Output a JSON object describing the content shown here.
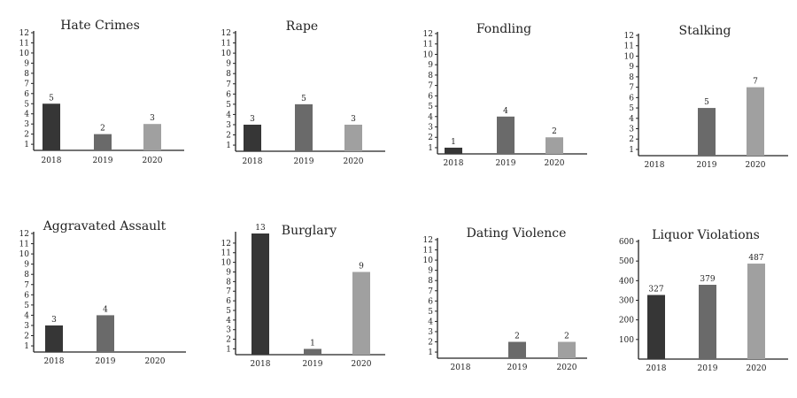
{
  "colors": {
    "2018": "#363636",
    "2019": "#6a6a6a",
    "2020": "#a0a0a0",
    "axis": "#222222"
  },
  "chart_data": [
    {
      "type": "bar",
      "title": "Hate Crimes",
      "categories": [
        "2018",
        "2019",
        "2020"
      ],
      "values": [
        5,
        2,
        3
      ],
      "labels": [
        "5",
        "2",
        "3"
      ],
      "yticks": [
        1,
        2,
        3,
        4,
        5,
        6,
        7,
        8,
        9,
        10,
        11,
        12
      ],
      "ylim": [
        0.4,
        12
      ]
    },
    {
      "type": "bar",
      "title": "Rape",
      "categories": [
        "2018",
        "2019",
        "2020"
      ],
      "values": [
        3,
        5,
        3
      ],
      "labels": [
        "3",
        "5",
        "3"
      ],
      "yticks": [
        1,
        2,
        3,
        4,
        5,
        6,
        7,
        8,
        9,
        10,
        11,
        12
      ],
      "ylim": [
        0.4,
        12
      ]
    },
    {
      "type": "bar",
      "title": "Fondling",
      "categories": [
        "2018",
        "2019",
        "2020"
      ],
      "values": [
        1,
        4,
        2
      ],
      "labels": [
        "1",
        "4",
        "2"
      ],
      "yticks": [
        1,
        2,
        3,
        4,
        5,
        6,
        7,
        8,
        9,
        10,
        11,
        12
      ],
      "ylim": [
        0.4,
        12
      ]
    },
    {
      "type": "bar",
      "title": "Stalking",
      "categories": [
        "2018",
        "2019",
        "2020"
      ],
      "values": [
        0,
        5,
        7
      ],
      "labels": [
        "",
        "5",
        "7"
      ],
      "yticks": [
        1,
        2,
        3,
        4,
        5,
        6,
        7,
        8,
        9,
        10,
        11,
        12
      ],
      "ylim": [
        0.4,
        12
      ]
    },
    {
      "type": "bar",
      "title": "Aggravated Assault",
      "categories": [
        "2018",
        "2019",
        "2020"
      ],
      "values": [
        3,
        4,
        0
      ],
      "labels": [
        "3",
        "4",
        ""
      ],
      "yticks": [
        1,
        2,
        3,
        4,
        5,
        6,
        7,
        8,
        9,
        10,
        11,
        12
      ],
      "ylim": [
        0.4,
        12
      ]
    },
    {
      "type": "bar",
      "title": "Burglary",
      "categories": [
        "2018",
        "2019",
        "2020"
      ],
      "values": [
        13,
        1,
        9
      ],
      "labels": [
        "13",
        "1",
        "9"
      ],
      "yticks": [
        1,
        2,
        3,
        4,
        5,
        6,
        7,
        8,
        9,
        10,
        11,
        12
      ],
      "ylim": [
        0.4,
        13
      ]
    },
    {
      "type": "bar",
      "title": "Dating Violence",
      "categories": [
        "2018",
        "2019",
        "2020"
      ],
      "values": [
        0,
        2,
        2
      ],
      "labels": [
        "",
        "2",
        "2"
      ],
      "yticks": [
        1,
        2,
        3,
        4,
        5,
        6,
        7,
        8,
        9,
        10,
        11,
        12
      ],
      "ylim": [
        0.4,
        12
      ]
    },
    {
      "type": "bar",
      "title": "Liquor Violations",
      "categories": [
        "2018",
        "2019",
        "2020"
      ],
      "values": [
        327,
        379,
        487
      ],
      "labels": [
        "327",
        "379",
        "487"
      ],
      "yticks": [
        100,
        200,
        300,
        400,
        500,
        600
      ],
      "ylim": [
        0,
        600
      ]
    }
  ]
}
